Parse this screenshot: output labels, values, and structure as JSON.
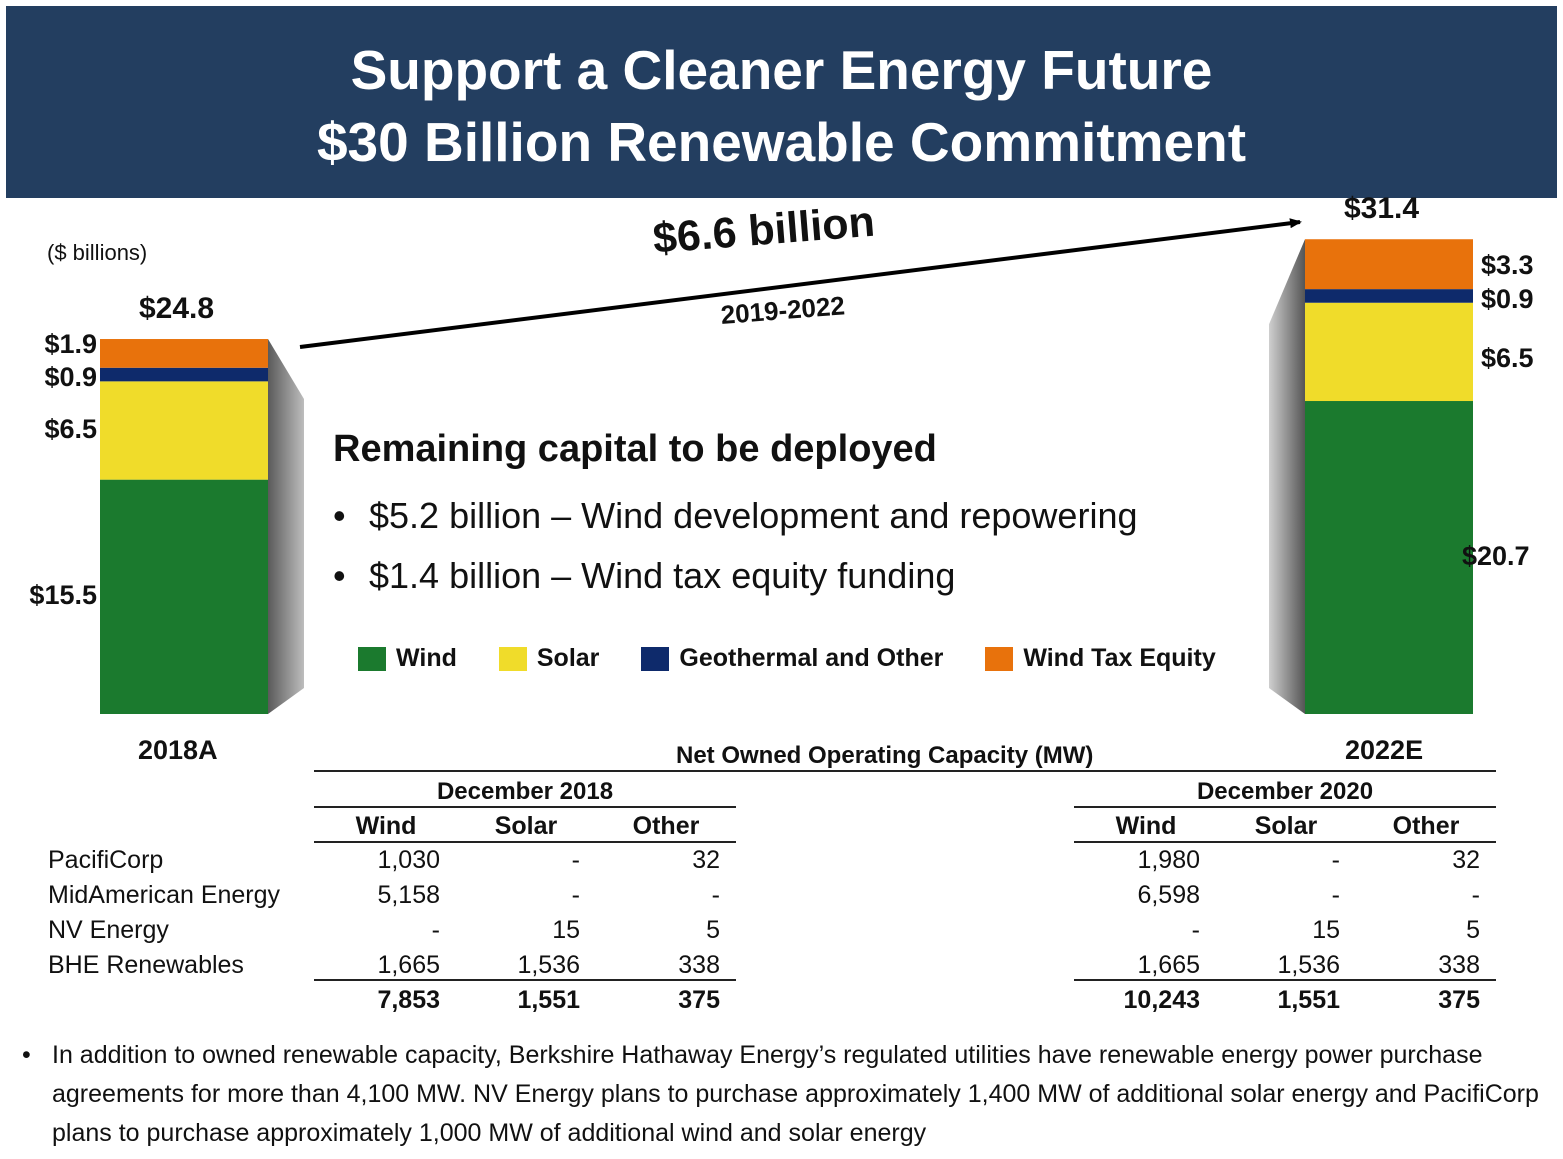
{
  "header": {
    "line1": "Support a Cleaner Energy Future",
    "line2": "$30 Billion Renewable Commitment"
  },
  "units_label": "($ billions)",
  "chart_data": {
    "type": "bar",
    "stacked": true,
    "categories": [
      "2018A",
      "2022E"
    ],
    "totals": [
      "$24.8",
      "$31.4"
    ],
    "series": [
      {
        "name": "Wind",
        "values": [
          15.5,
          20.7
        ],
        "labels": [
          "$15.5",
          "$20.7"
        ],
        "color": "#1b7a2e"
      },
      {
        "name": "Solar",
        "values": [
          6.5,
          6.5
        ],
        "labels": [
          "$6.5",
          "$6.5"
        ],
        "color": "#f0dc2a"
      },
      {
        "name": "Geothermal and Other",
        "values": [
          0.9,
          0.9
        ],
        "labels": [
          "$0.9",
          "$0.9"
        ],
        "color": "#0e2a6b"
      },
      {
        "name": "Wind Tax Equity",
        "values": [
          1.9,
          3.3
        ],
        "labels": [
          "$1.9",
          "$3.3"
        ],
        "color": "#e8720c"
      }
    ],
    "annotation": {
      "amount": "$6.6 billion",
      "period": "2019-2022"
    }
  },
  "remaining": {
    "title": "Remaining capital to be deployed",
    "bullets": [
      "$5.2 billion – Wind development and repowering",
      "$1.4 billion – Wind tax equity funding"
    ]
  },
  "table": {
    "title": "Net Owned Operating Capacity (MW)",
    "groups": [
      {
        "label": "December 2018",
        "columns": [
          "Wind",
          "Solar",
          "Other"
        ],
        "rows": [
          [
            "1,030",
            "-",
            "32"
          ],
          [
            "5,158",
            "-",
            "-"
          ],
          [
            "-",
            "15",
            "5"
          ],
          [
            "1,665",
            "1,536",
            "338"
          ]
        ],
        "totals": [
          "7,853",
          "1,551",
          "375"
        ]
      },
      {
        "label": "December 2020",
        "columns": [
          "Wind",
          "Solar",
          "Other"
        ],
        "rows": [
          [
            "1,980",
            "-",
            "32"
          ],
          [
            "6,598",
            "-",
            "-"
          ],
          [
            "-",
            "15",
            "5"
          ],
          [
            "1,665",
            "1,536",
            "338"
          ]
        ],
        "totals": [
          "10,243",
          "1,551",
          "375"
        ]
      }
    ],
    "row_labels": [
      "PacifiCorp",
      "MidAmerican Energy",
      "NV Energy",
      "BHE Renewables"
    ]
  },
  "footnote": {
    "bullet": "•",
    "text": "In addition to owned renewable capacity, Berkshire Hathaway Energy’s regulated utilities have renewable energy power purchase agreements for more than 4,100 MW. NV Energy plans to purchase approximately 1,400 MW of additional solar energy and PacifiCorp plans to purchase approximately 1,000 MW of additional wind and solar energy"
  }
}
